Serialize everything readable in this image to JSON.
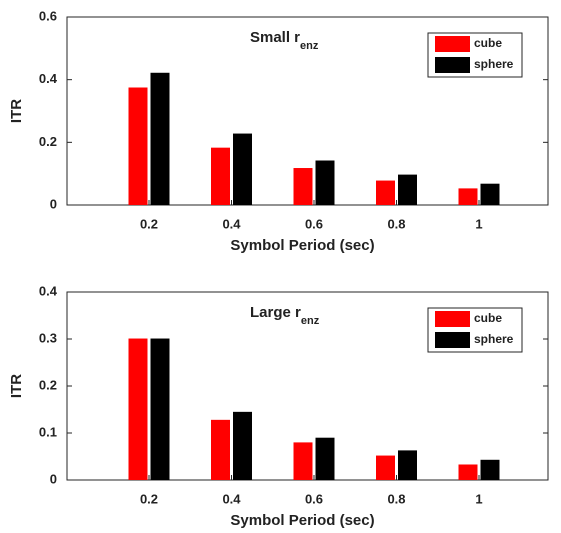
{
  "chart_data": [
    {
      "type": "bar",
      "title": "Small r",
      "title_subscript": "enz",
      "categories": [
        "0.2",
        "0.4",
        "0.6",
        "0.8",
        "1"
      ],
      "series": [
        {
          "name": "cube",
          "color": "#ff0000",
          "values": [
            0.375,
            0.183,
            0.118,
            0.078,
            0.053
          ]
        },
        {
          "name": "sphere",
          "color": "#000000",
          "values": [
            0.422,
            0.228,
            0.142,
            0.097,
            0.068
          ]
        }
      ],
      "xlabel": "Symbol Period (sec)",
      "ylabel": "ITR",
      "ylim": [
        0,
        0.6
      ],
      "yticks": [
        0,
        0.2,
        0.4,
        0.6
      ],
      "legend": "upper right"
    },
    {
      "type": "bar",
      "title": "Large r",
      "title_subscript": "enz",
      "categories": [
        "0.2",
        "0.4",
        "0.6",
        "0.8",
        "1"
      ],
      "series": [
        {
          "name": "cube",
          "color": "#ff0000",
          "values": [
            0.301,
            0.128,
            0.08,
            0.052,
            0.033
          ]
        },
        {
          "name": "sphere",
          "color": "#000000",
          "values": [
            0.301,
            0.145,
            0.09,
            0.063,
            0.043
          ]
        }
      ],
      "xlabel": "Symbol Period (sec)",
      "ylabel": "ITR",
      "ylim": [
        0,
        0.4
      ],
      "yticks": [
        0,
        0.1,
        0.2,
        0.3,
        0.4
      ],
      "legend": "upper right"
    }
  ]
}
